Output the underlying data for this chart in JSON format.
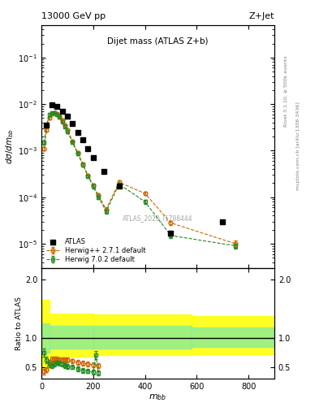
{
  "title_left": "13000 GeV pp",
  "title_right": "Z+Jet",
  "plot_title": "Dijet mass (ATLAS Z+b)",
  "xlabel": "m_{bb}",
  "ylabel_main": "dσ/dm_{bb}",
  "ylabel_ratio": "Ratio to ATLAS",
  "watermark": "ATLAS_2020_I1788444",
  "right_label": "mcplots.cern.ch [arXiv:1306.3436]",
  "right_label2": "Rivet 3.1.10, ≥ 500k events",
  "atlas_x": [
    20,
    40,
    60,
    80,
    100,
    120,
    140,
    160,
    180,
    200,
    240,
    300,
    500,
    700
  ],
  "atlas_y": [
    0.0035,
    0.0095,
    0.009,
    0.007,
    0.0055,
    0.0038,
    0.0025,
    0.0017,
    0.0011,
    0.0007,
    0.00035,
    0.00017,
    1.7e-05,
    3e-05
  ],
  "herwig1_x": [
    10,
    20,
    30,
    40,
    50,
    60,
    70,
    80,
    90,
    100,
    120,
    140,
    160,
    180,
    200,
    220,
    250,
    300,
    400,
    500,
    750
  ],
  "herwig1_y": [
    0.0011,
    0.0028,
    0.005,
    0.0062,
    0.0065,
    0.0062,
    0.0055,
    0.0045,
    0.0035,
    0.0028,
    0.0016,
    0.0009,
    0.00052,
    0.00029,
    0.00018,
    0.00011,
    5.5e-05,
    0.00021,
    0.00012,
    2.8e-05,
    1e-05
  ],
  "herwig1_yerr": [
    0.0001,
    0.0002,
    0.0003,
    0.0003,
    0.0003,
    0.0003,
    0.0003,
    0.0003,
    0.0002,
    0.0002,
    0.0001,
    6e-05,
    4e-05,
    2e-05,
    1.5e-05,
    1e-05,
    5e-06,
    1.5e-05,
    1e-05,
    3e-06,
    1.5e-06
  ],
  "herwig2_x": [
    10,
    20,
    30,
    40,
    50,
    60,
    70,
    80,
    90,
    100,
    120,
    140,
    160,
    180,
    200,
    220,
    250,
    300,
    400,
    500,
    750
  ],
  "herwig2_y": [
    0.0015,
    0.0035,
    0.006,
    0.0065,
    0.0065,
    0.006,
    0.0052,
    0.0042,
    0.0033,
    0.0026,
    0.0015,
    0.00085,
    0.0005,
    0.00028,
    0.00017,
    0.0001,
    5e-05,
    0.00019,
    8e-05,
    1.5e-05,
    9e-06
  ],
  "herwig2_yerr": [
    0.00015,
    0.00025,
    0.0004,
    0.0004,
    0.0004,
    0.0003,
    0.0003,
    0.0003,
    0.0002,
    0.0002,
    0.0001,
    6e-05,
    4e-05,
    2e-05,
    1.5e-05,
    1e-05,
    5e-06,
    1.5e-05,
    8e-06,
    2e-06,
    1e-06
  ],
  "ratio_herwig1_x": [
    10,
    20,
    30,
    40,
    50,
    60,
    70,
    80,
    90,
    100,
    120,
    140,
    160,
    180,
    200,
    220
  ],
  "ratio_herwig1_y": [
    0.42,
    0.45,
    0.58,
    0.63,
    0.64,
    0.63,
    0.62,
    0.62,
    0.62,
    0.62,
    0.6,
    0.58,
    0.56,
    0.55,
    0.54,
    0.52
  ],
  "ratio_herwig1_yerr": [
    0.05,
    0.04,
    0.04,
    0.04,
    0.04,
    0.04,
    0.04,
    0.04,
    0.04,
    0.04,
    0.04,
    0.04,
    0.04,
    0.04,
    0.04,
    0.04
  ],
  "ratio_herwig2_x": [
    10,
    20,
    30,
    40,
    50,
    60,
    70,
    80,
    90,
    100,
    120,
    140,
    160,
    180,
    200,
    210,
    220
  ],
  "ratio_herwig2_y": [
    0.75,
    0.62,
    0.55,
    0.52,
    0.55,
    0.58,
    0.56,
    0.55,
    0.52,
    0.51,
    0.5,
    0.47,
    0.44,
    0.43,
    0.41,
    0.7,
    0.4
  ],
  "ratio_herwig2_yerr": [
    0.07,
    0.05,
    0.05,
    0.04,
    0.04,
    0.04,
    0.04,
    0.04,
    0.04,
    0.04,
    0.04,
    0.04,
    0.04,
    0.04,
    0.04,
    0.07,
    0.04
  ],
  "band_edges": [
    0,
    30,
    200,
    580,
    900
  ],
  "band_green_lo": [
    0.75,
    0.82,
    0.82,
    0.85,
    0.85
  ],
  "band_green_hi": [
    1.25,
    1.2,
    1.2,
    1.18,
    1.18
  ],
  "band_yellow_lo": [
    0.45,
    0.68,
    0.7,
    0.72,
    0.72
  ],
  "band_yellow_hi": [
    1.65,
    1.42,
    1.4,
    1.38,
    1.38
  ],
  "herwig1_color": "#cc6600",
  "herwig2_color": "#228B22",
  "atlas_color": "black",
  "xlim": [
    0,
    900
  ],
  "ylim_main": [
    3e-06,
    0.5
  ],
  "ylim_ratio": [
    0.3,
    2.2
  ]
}
